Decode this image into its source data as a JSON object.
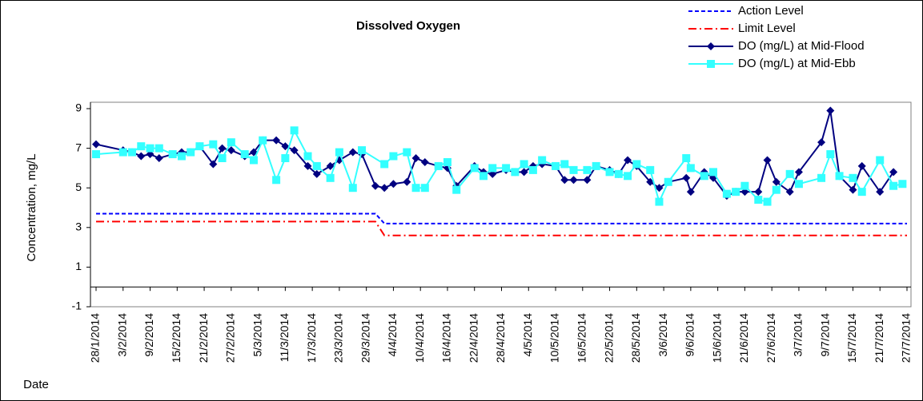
{
  "chart_data": {
    "type": "line",
    "title": "Dissolved Oxygen",
    "y_label": "Concentration, mg/L",
    "x_label": "Date",
    "ylim": [
      -1,
      9
    ],
    "yticks": [
      -1,
      1,
      3,
      5,
      7,
      9
    ],
    "xaxis_crosses": 0,
    "xlim": [
      "2014-01-28",
      "2014-07-27"
    ],
    "xticks": [
      {
        "value": "2014-01-28",
        "label": "28/1/2014"
      },
      {
        "value": "2014-02-03",
        "label": "3/2/2014"
      },
      {
        "value": "2014-02-09",
        "label": "9/2/2014"
      },
      {
        "value": "2014-02-15",
        "label": "15/2/2014"
      },
      {
        "value": "2014-02-21",
        "label": "21/2/2014"
      },
      {
        "value": "2014-02-27",
        "label": "27/2/2014"
      },
      {
        "value": "2014-03-05",
        "label": "5/3/2014"
      },
      {
        "value": "2014-03-11",
        "label": "11/3/2014"
      },
      {
        "value": "2014-03-17",
        "label": "17/3/2014"
      },
      {
        "value": "2014-03-23",
        "label": "23/3/2014"
      },
      {
        "value": "2014-03-29",
        "label": "29/3/2014"
      },
      {
        "value": "2014-04-04",
        "label": "4/4/2014"
      },
      {
        "value": "2014-04-10",
        "label": "10/4/2014"
      },
      {
        "value": "2014-04-16",
        "label": "16/4/2014"
      },
      {
        "value": "2014-04-22",
        "label": "22/4/2014"
      },
      {
        "value": "2014-04-28",
        "label": "28/4/2014"
      },
      {
        "value": "2014-05-04",
        "label": "4/5/2014"
      },
      {
        "value": "2014-05-10",
        "label": "10/5/2014"
      },
      {
        "value": "2014-05-16",
        "label": "16/5/2014"
      },
      {
        "value": "2014-05-22",
        "label": "22/5/2014"
      },
      {
        "value": "2014-05-28",
        "label": "28/5/2014"
      },
      {
        "value": "2014-06-03",
        "label": "3/6/2014"
      },
      {
        "value": "2014-06-09",
        "label": "9/6/2014"
      },
      {
        "value": "2014-06-15",
        "label": "15/6/2014"
      },
      {
        "value": "2014-06-21",
        "label": "21/6/2014"
      },
      {
        "value": "2014-06-27",
        "label": "27/6/2014"
      },
      {
        "value": "2014-07-03",
        "label": "3/7/2014"
      },
      {
        "value": "2014-07-09",
        "label": "9/7/2014"
      },
      {
        "value": "2014-07-15",
        "label": "15/7/2014"
      },
      {
        "value": "2014-07-21",
        "label": "21/7/2014"
      },
      {
        "value": "2014-07-27",
        "label": "27/7/2014"
      }
    ],
    "series": [
      {
        "name": "Action Level",
        "color": "#0000ff",
        "dash": "dashed",
        "marker": null,
        "x": [
          "2014-01-28",
          "2014-03-31",
          "2014-04-02",
          "2014-07-27"
        ],
        "values": [
          3.7,
          3.7,
          3.2,
          3.2
        ]
      },
      {
        "name": "Limit Level",
        "color": "#ff0000",
        "dash": "dashdot",
        "marker": null,
        "x": [
          "2014-01-28",
          "2014-03-31",
          "2014-04-02",
          "2014-07-27"
        ],
        "values": [
          3.3,
          3.3,
          2.6,
          2.6
        ]
      },
      {
        "name": "DO (mg/L) at Mid-Flood",
        "color": "#000080",
        "dash": "solid",
        "marker": "diamond",
        "x": [
          "2014-01-28",
          "2014-02-03",
          "2014-02-05",
          "2014-02-07",
          "2014-02-09",
          "2014-02-11",
          "2014-02-14",
          "2014-02-16",
          "2014-02-18",
          "2014-02-20",
          "2014-02-23",
          "2014-02-25",
          "2014-02-27",
          "2014-03-02",
          "2014-03-04",
          "2014-03-06",
          "2014-03-09",
          "2014-03-11",
          "2014-03-13",
          "2014-03-16",
          "2014-03-18",
          "2014-03-21",
          "2014-03-23",
          "2014-03-26",
          "2014-03-28",
          "2014-03-31",
          "2014-04-02",
          "2014-04-04",
          "2014-04-07",
          "2014-04-09",
          "2014-04-11",
          "2014-04-14",
          "2014-04-16",
          "2014-04-18",
          "2014-04-22",
          "2014-04-24",
          "2014-04-26",
          "2014-04-29",
          "2014-05-01",
          "2014-05-03",
          "2014-05-05",
          "2014-05-07",
          "2014-05-10",
          "2014-05-12",
          "2014-05-14",
          "2014-05-17",
          "2014-05-19",
          "2014-05-22",
          "2014-05-24",
          "2014-05-26",
          "2014-05-28",
          "2014-05-31",
          "2014-06-02",
          "2014-06-04",
          "2014-06-08",
          "2014-06-09",
          "2014-06-12",
          "2014-06-14",
          "2014-06-17",
          "2014-06-19",
          "2014-06-21",
          "2014-06-24",
          "2014-06-26",
          "2014-06-28",
          "2014-07-01",
          "2014-07-03",
          "2014-07-08",
          "2014-07-10",
          "2014-07-12",
          "2014-07-15",
          "2014-07-17",
          "2014-07-21",
          "2014-07-24"
        ],
        "values": [
          7.2,
          6.9,
          6.8,
          6.6,
          6.7,
          6.5,
          6.7,
          6.8,
          6.8,
          7.1,
          6.2,
          7.0,
          6.9,
          6.6,
          6.8,
          7.4,
          7.4,
          7.1,
          6.9,
          6.1,
          5.7,
          6.1,
          6.4,
          6.8,
          6.7,
          5.1,
          5.0,
          5.2,
          5.3,
          6.5,
          6.3,
          6.1,
          6.0,
          5.1,
          6.1,
          5.8,
          5.7,
          5.9,
          5.8,
          5.8,
          6.1,
          6.2,
          6.1,
          5.4,
          5.4,
          5.4,
          6.1,
          5.9,
          5.7,
          6.4,
          6.1,
          5.3,
          5.0,
          5.3,
          5.5,
          4.8,
          5.8,
          5.5,
          4.6,
          4.8,
          4.8,
          4.8,
          6.4,
          5.3,
          4.8,
          5.8,
          7.3,
          8.9,
          5.6,
          4.9,
          6.1,
          4.8,
          5.8
        ]
      },
      {
        "name": "DO (mg/L) at Mid-Ebb",
        "color": "#33ffff",
        "dash": "solid",
        "marker": "square",
        "x": [
          "2014-01-28",
          "2014-02-03",
          "2014-02-05",
          "2014-02-07",
          "2014-02-09",
          "2014-02-11",
          "2014-02-14",
          "2014-02-16",
          "2014-02-18",
          "2014-02-20",
          "2014-02-23",
          "2014-02-25",
          "2014-02-27",
          "2014-03-02",
          "2014-03-04",
          "2014-03-06",
          "2014-03-09",
          "2014-03-11",
          "2014-03-13",
          "2014-03-16",
          "2014-03-18",
          "2014-03-21",
          "2014-03-23",
          "2014-03-26",
          "2014-03-28",
          "2014-04-02",
          "2014-04-04",
          "2014-04-07",
          "2014-04-09",
          "2014-04-11",
          "2014-04-14",
          "2014-04-16",
          "2014-04-18",
          "2014-04-22",
          "2014-04-24",
          "2014-04-26",
          "2014-04-29",
          "2014-05-01",
          "2014-05-03",
          "2014-05-05",
          "2014-05-07",
          "2014-05-10",
          "2014-05-12",
          "2014-05-14",
          "2014-05-17",
          "2014-05-19",
          "2014-05-22",
          "2014-05-24",
          "2014-05-26",
          "2014-05-28",
          "2014-05-31",
          "2014-06-02",
          "2014-06-04",
          "2014-06-08",
          "2014-06-09",
          "2014-06-12",
          "2014-06-14",
          "2014-06-17",
          "2014-06-19",
          "2014-06-21",
          "2014-06-24",
          "2014-06-26",
          "2014-06-28",
          "2014-07-01",
          "2014-07-03",
          "2014-07-08",
          "2014-07-10",
          "2014-07-12",
          "2014-07-15",
          "2014-07-17",
          "2014-07-21",
          "2014-07-24",
          "2014-07-26"
        ],
        "values": [
          6.7,
          6.8,
          6.8,
          7.1,
          7.0,
          7.0,
          6.7,
          6.6,
          6.8,
          7.1,
          7.2,
          6.5,
          7.3,
          6.7,
          6.4,
          7.4,
          5.4,
          6.5,
          7.9,
          6.6,
          6.1,
          5.5,
          6.8,
          5.0,
          6.9,
          6.2,
          6.6,
          6.8,
          5.0,
          5.0,
          6.1,
          6.3,
          4.9,
          6.0,
          5.6,
          6.0,
          6.0,
          5.8,
          6.2,
          5.9,
          6.4,
          6.1,
          6.2,
          5.9,
          5.9,
          6.1,
          5.8,
          5.7,
          5.6,
          6.2,
          5.9,
          4.3,
          5.3,
          6.5,
          6.0,
          5.6,
          5.8,
          4.7,
          4.8,
          5.1,
          4.4,
          4.3,
          4.9,
          5.7,
          5.2,
          5.5,
          6.7,
          5.6,
          5.5,
          4.8,
          6.4,
          5.1,
          5.2
        ]
      }
    ]
  }
}
